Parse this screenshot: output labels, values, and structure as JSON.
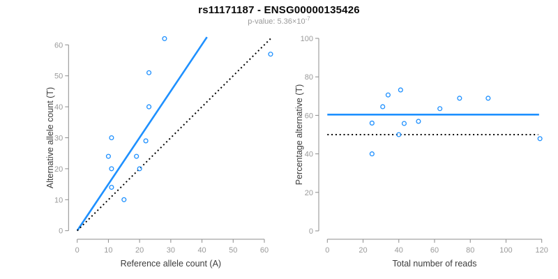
{
  "header": {
    "title": "rs11171187 - ENSG00000135426",
    "pvalue_prefix": "p-value: 5.36×10",
    "pvalue_exponent": "-7"
  },
  "colors": {
    "accent_blue": "#1E90FF",
    "line_black": "#000000",
    "axis_gray": "#8c8c8c",
    "tick_label_gray": "#9a9a9a",
    "axis_title_color": "#3c3c3c"
  },
  "chart_data": [
    {
      "id": "allele-count-scatter",
      "type": "scatter",
      "xlabel": "Reference allele count (A)",
      "ylabel": "Alternative allele count (T)",
      "xlim": [
        0,
        60
      ],
      "ylim": [
        0,
        60
      ],
      "xticks": [
        0,
        10,
        20,
        30,
        40,
        50,
        60
      ],
      "yticks": [
        0,
        10,
        20,
        30,
        40,
        50,
        60
      ],
      "grid": false,
      "points": [
        [
          28,
          62
        ],
        [
          62,
          57
        ],
        [
          23,
          51
        ],
        [
          23,
          40
        ],
        [
          11,
          30
        ],
        [
          22,
          29
        ],
        [
          10,
          24
        ],
        [
          19,
          24
        ],
        [
          11,
          20
        ],
        [
          20,
          20
        ],
        [
          11,
          14
        ],
        [
          15,
          10
        ]
      ],
      "lines": [
        {
          "name": "regression-line",
          "style": "solid",
          "color": "#1E90FF",
          "x1": 0,
          "y1": 0,
          "x2": 41.6,
          "y2": 62.5
        },
        {
          "name": "identity-line",
          "style": "dotted",
          "color": "#000000",
          "x1": 0,
          "y1": 0,
          "x2": 62,
          "y2": 62
        }
      ]
    },
    {
      "id": "percentage-vs-reads-scatter",
      "type": "scatter",
      "xlabel": "Total number of reads",
      "ylabel": "Percentage alternative (T)",
      "xlim": [
        0,
        120
      ],
      "ylim": [
        0,
        100
      ],
      "xticks": [
        0,
        20,
        40,
        60,
        80,
        100,
        120
      ],
      "yticks": [
        0,
        20,
        40,
        60,
        80,
        100
      ],
      "grid": false,
      "points": [
        [
          25,
          56
        ],
        [
          25,
          40
        ],
        [
          31,
          64.5
        ],
        [
          34,
          70.6
        ],
        [
          40,
          50
        ],
        [
          41,
          73.2
        ],
        [
          43,
          55.8
        ],
        [
          51,
          56.9
        ],
        [
          63,
          63.5
        ],
        [
          74,
          68.9
        ],
        [
          90,
          68.9
        ],
        [
          119,
          47.9
        ]
      ],
      "lines": [
        {
          "name": "mean-percentage-line",
          "style": "solid",
          "color": "#1E90FF",
          "x1": 0,
          "y1": 60.4,
          "x2": 118.5,
          "y2": 60.4
        },
        {
          "name": "fifty-percent-line",
          "style": "dotted",
          "color": "#000000",
          "x1": 0,
          "y1": 50,
          "x2": 118,
          "y2": 50
        }
      ]
    }
  ]
}
